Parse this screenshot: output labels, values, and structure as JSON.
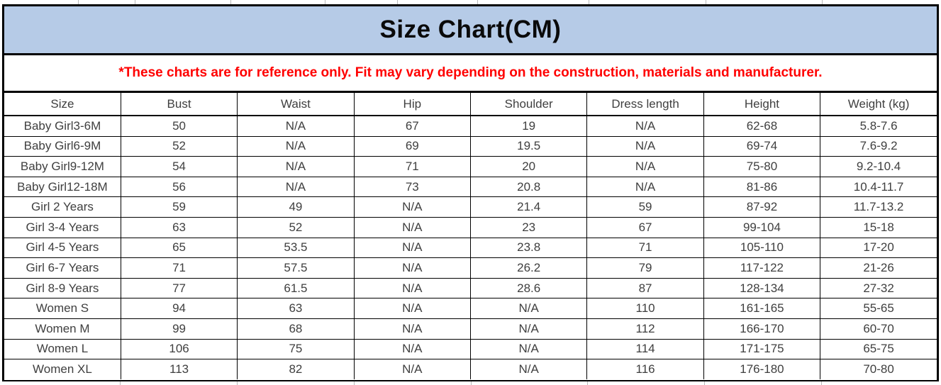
{
  "title": "Size Chart(CM)",
  "disclaimer": "*These charts are for reference only. Fit may vary depending on the construction, materials and manufacturer.",
  "colors": {
    "title_bar_bg": "#b6cbe7",
    "disclaimer_text": "#ff0000",
    "grid_border": "#000000",
    "cell_text": "#3f3f3f"
  },
  "table": {
    "columns": [
      "Size",
      "Bust",
      "Waist",
      "Hip",
      "Shoulder",
      "Dress length",
      "Height",
      "Weight (kg)"
    ],
    "rows": [
      [
        "Baby Girl3-6M",
        "50",
        "N/A",
        "67",
        "19",
        "N/A",
        "62-68",
        "5.8-7.6"
      ],
      [
        "Baby Girl6-9M",
        "52",
        "N/A",
        "69",
        "19.5",
        "N/A",
        "69-74",
        "7.6-9.2"
      ],
      [
        "Baby Girl9-12M",
        "54",
        "N/A",
        "71",
        "20",
        "N/A",
        "75-80",
        "9.2-10.4"
      ],
      [
        "Baby Girl12-18M",
        "56",
        "N/A",
        "73",
        "20.8",
        "N/A",
        "81-86",
        "10.4-11.7"
      ],
      [
        "Girl 2 Years",
        "59",
        "49",
        "N/A",
        "21.4",
        "59",
        "87-92",
        "11.7-13.2"
      ],
      [
        "Girl 3-4 Years",
        "63",
        "52",
        "N/A",
        "23",
        "67",
        "99-104",
        "15-18"
      ],
      [
        "Girl 4-5 Years",
        "65",
        "53.5",
        "N/A",
        "23.8",
        "71",
        "105-110",
        "17-20"
      ],
      [
        "Girl 6-7 Years",
        "71",
        "57.5",
        "N/A",
        "26.2",
        "79",
        "117-122",
        "21-26"
      ],
      [
        "Girl 8-9 Years",
        "77",
        "61.5",
        "N/A",
        "28.6",
        "87",
        "128-134",
        "27-32"
      ],
      [
        "Women S",
        "94",
        "63",
        "N/A",
        "N/A",
        "110",
        "161-165",
        "55-65"
      ],
      [
        "Women M",
        "99",
        "68",
        "N/A",
        "N/A",
        "112",
        "166-170",
        "60-70"
      ],
      [
        "Women L",
        "106",
        "75",
        "N/A",
        "N/A",
        "114",
        "171-175",
        "65-75"
      ],
      [
        "Women XL",
        "113",
        "82",
        "N/A",
        "N/A",
        "116",
        "176-180",
        "70-80"
      ]
    ]
  }
}
